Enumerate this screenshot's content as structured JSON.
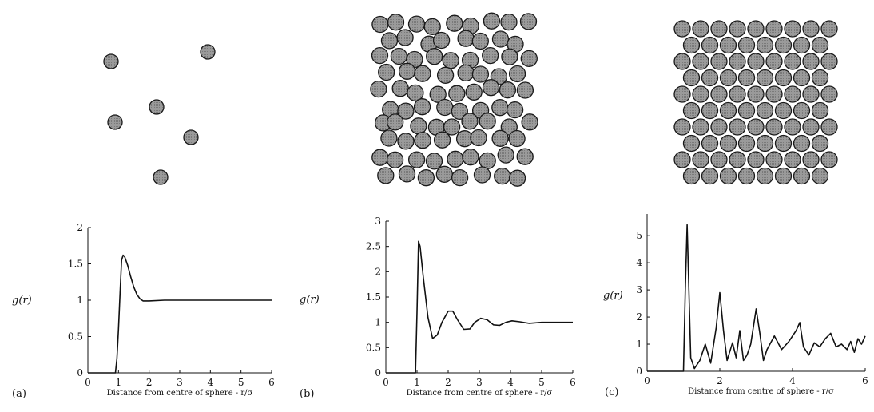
{
  "figure": {
    "panels": [
      {
        "label": "(a)"
      },
      {
        "label": "(b)"
      },
      {
        "label": "(c)"
      }
    ]
  },
  "chart_data": [
    {
      "type": "line",
      "panel": "(a)",
      "xlabel": "Distance from centre of sphere - r/σ",
      "ylabel": "g(r)",
      "xlim": [
        0,
        6
      ],
      "ylim": [
        0,
        2
      ],
      "xticks": [
        "0",
        "1",
        "2",
        "3",
        "4",
        "5",
        "6"
      ],
      "yticks": [
        "0",
        "0.5",
        "1",
        "1.5",
        "2"
      ],
      "series": [
        {
          "x": [
            0,
            0.9,
            0.95,
            1.0,
            1.05,
            1.1,
            1.15,
            1.2,
            1.3,
            1.4,
            1.5,
            1.6,
            1.7,
            1.8,
            2.0,
            2.5,
            3,
            4,
            5,
            6
          ],
          "y": [
            0,
            0,
            0.2,
            0.6,
            1.1,
            1.55,
            1.62,
            1.6,
            1.48,
            1.32,
            1.18,
            1.08,
            1.02,
            0.99,
            0.99,
            1.0,
            1.0,
            1.0,
            1.0,
            1.0
          ]
        }
      ]
    },
    {
      "type": "line",
      "panel": "(b)",
      "xlabel": "Distance from centre of sphere - r/σ",
      "ylabel": "g(r)",
      "xlim": [
        0,
        6
      ],
      "ylim": [
        0,
        3
      ],
      "xticks": [
        "0",
        "1",
        "2",
        "3",
        "4",
        "5",
        "6"
      ],
      "yticks": [
        "0",
        "0.5",
        "1",
        "1.5",
        "2",
        "2.5",
        "3"
      ],
      "series": [
        {
          "x": [
            0,
            0.95,
            1.0,
            1.05,
            1.1,
            1.2,
            1.35,
            1.5,
            1.65,
            1.8,
            2.0,
            2.15,
            2.3,
            2.5,
            2.7,
            2.85,
            3.05,
            3.25,
            3.45,
            3.65,
            3.85,
            4.05,
            4.3,
            4.6,
            5.0,
            5.5,
            6.0
          ],
          "y": [
            0,
            0,
            1.2,
            2.6,
            2.5,
            1.9,
            1.1,
            0.68,
            0.75,
            1.0,
            1.22,
            1.22,
            1.05,
            0.86,
            0.87,
            1.0,
            1.08,
            1.05,
            0.95,
            0.94,
            1.0,
            1.03,
            1.01,
            0.98,
            1.0,
            1.0,
            1.0
          ]
        }
      ]
    },
    {
      "type": "line",
      "panel": "(c)",
      "xlabel": "Distance from centre of sphere - r/σ",
      "ylabel": "g(r)",
      "xlim": [
        0,
        6
      ],
      "ylim": [
        0,
        5.8
      ],
      "xticks": [
        "0",
        "2",
        "4",
        "6"
      ],
      "yticks": [
        "0",
        "1",
        "2",
        "3",
        "4",
        "5"
      ],
      "series": [
        {
          "x": [
            0,
            1.0,
            1.05,
            1.1,
            1.15,
            1.2,
            1.3,
            1.45,
            1.6,
            1.75,
            1.9,
            2.0,
            2.1,
            2.2,
            2.35,
            2.45,
            2.55,
            2.65,
            2.75,
            2.85,
            3.0,
            3.1,
            3.2,
            3.3,
            3.5,
            3.7,
            3.9,
            4.1,
            4.2,
            4.3,
            4.45,
            4.6,
            4.75,
            4.9,
            5.05,
            5.2,
            5.35,
            5.5,
            5.6,
            5.7,
            5.8,
            5.9,
            6.0
          ],
          "y": [
            0,
            0,
            3.0,
            5.4,
            3.0,
            0.5,
            0.1,
            0.4,
            1.0,
            0.3,
            1.6,
            2.9,
            1.5,
            0.4,
            1.05,
            0.5,
            1.5,
            0.4,
            0.6,
            1.0,
            2.3,
            1.4,
            0.4,
            0.8,
            1.3,
            0.8,
            1.1,
            1.5,
            1.8,
            0.9,
            0.6,
            1.05,
            0.9,
            1.2,
            1.4,
            0.9,
            1.0,
            0.8,
            1.1,
            0.7,
            1.2,
            1.0,
            1.3
          ]
        }
      ]
    }
  ]
}
